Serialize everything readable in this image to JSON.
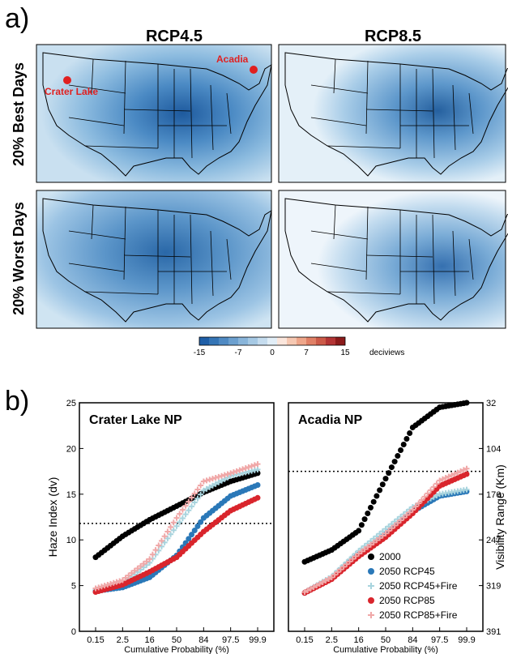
{
  "panel_a": {
    "label": "a)",
    "columns": [
      "RCP4.5",
      "RCP8.5"
    ],
    "rows": [
      "20% Best Days",
      "20% Worst Days"
    ],
    "sites": [
      {
        "name": "Crater Lake"
      },
      {
        "name": "Acadia"
      }
    ],
    "colorbar": {
      "ticks": [
        "-15",
        "-7",
        "0",
        "7",
        "15"
      ],
      "unit": "deciviews",
      "negative_color": "#1f5fa8",
      "positive_color": "#8b1a1a"
    }
  },
  "panel_b": {
    "label": "b)"
  },
  "chart_data": [
    {
      "type": "scatter",
      "title": "Crater Lake NP",
      "xlabel": "Cumulative Probability (%)",
      "ylabel": "Haze Index (dv)",
      "x_ticks": [
        "0.15",
        "2.5",
        "16",
        "50",
        "84",
        "97.5",
        "99.9"
      ],
      "y_ticks": [
        "0",
        "5",
        "10",
        "15",
        "20",
        "25"
      ],
      "ylim": [
        0,
        25
      ],
      "reference_line_y": 11.8,
      "series": [
        {
          "name": "2000",
          "color": "#000000",
          "marker": "circle",
          "x": [
            "0.15",
            "2.5",
            "16",
            "50",
            "84",
            "97.5",
            "99.9"
          ],
          "values": [
            8.1,
            10.4,
            12.2,
            13.7,
            15.2,
            16.4,
            17.3
          ]
        },
        {
          "name": "2050 RCP45",
          "color": "#2a78b8",
          "marker": "circle",
          "x": [
            "0.15",
            "2.5",
            "16",
            "50",
            "84",
            "97.5",
            "99.9"
          ],
          "values": [
            4.4,
            4.8,
            5.9,
            8.3,
            12.4,
            14.8,
            16.0
          ]
        },
        {
          "name": "2050 RCP45+Fire",
          "color": "#a8d4de",
          "marker": "plus",
          "x": [
            "0.15",
            "2.5",
            "16",
            "50",
            "84",
            "97.5",
            "99.9"
          ],
          "values": [
            4.6,
            5.2,
            7.5,
            11.5,
            15.4,
            17.0,
            17.7
          ]
        },
        {
          "name": "2050 RCP85",
          "color": "#d9252c",
          "marker": "circle",
          "x": [
            "0.15",
            "2.5",
            "16",
            "50",
            "84",
            "97.5",
            "99.9"
          ],
          "values": [
            4.3,
            5.1,
            6.5,
            8.1,
            10.9,
            13.2,
            14.6
          ]
        },
        {
          "name": "2050 RCP85+Fire",
          "color": "#f0a8a8",
          "marker": "plus",
          "x": [
            "0.15",
            "2.5",
            "16",
            "50",
            "84",
            "97.5",
            "99.9"
          ],
          "values": [
            4.7,
            5.6,
            7.9,
            12.4,
            16.4,
            17.3,
            18.3
          ]
        }
      ]
    },
    {
      "type": "scatter",
      "title": "Acadia NP",
      "xlabel": "Cumulative Probability (%)",
      "ylabel": "Visibility Range (Km)",
      "x_ticks": [
        "0.15",
        "2.5",
        "16",
        "50",
        "84",
        "97.5",
        "99.9"
      ],
      "y_ticks_right": [
        "32",
        "104",
        "176",
        "247",
        "319",
        "391"
      ],
      "ylim": [
        0,
        25
      ],
      "reference_line_y": 17.5,
      "series": [
        {
          "name": "2000",
          "color": "#000000",
          "marker": "circle",
          "x": [
            "0.15",
            "2.5",
            "16",
            "50",
            "84",
            "97.5",
            "99.9"
          ],
          "values": [
            7.6,
            8.9,
            11.0,
            16.7,
            22.3,
            24.5,
            25.0
          ]
        },
        {
          "name": "2050 RCP45",
          "color": "#2a78b8",
          "marker": "circle",
          "x": [
            "0.15",
            "2.5",
            "16",
            "50",
            "84",
            "97.5",
            "99.9"
          ],
          "values": [
            4.2,
            5.8,
            8.4,
            10.6,
            13.1,
            14.8,
            15.3
          ]
        },
        {
          "name": "2050 RCP45+Fire",
          "color": "#a8d4de",
          "marker": "plus",
          "x": [
            "0.15",
            "2.5",
            "16",
            "50",
            "84",
            "97.5",
            "99.9"
          ],
          "values": [
            4.3,
            6.0,
            8.8,
            11.2,
            13.6,
            15.0,
            15.5
          ]
        },
        {
          "name": "2050 RCP85",
          "color": "#d9252c",
          "marker": "circle",
          "x": [
            "0.15",
            "2.5",
            "16",
            "50",
            "84",
            "97.5",
            "99.9"
          ],
          "values": [
            4.2,
            5.7,
            8.2,
            10.3,
            12.9,
            15.9,
            17.2
          ]
        },
        {
          "name": "2050 RCP85+Fire",
          "color": "#f0a8a8",
          "marker": "plus",
          "x": [
            "0.15",
            "2.5",
            "16",
            "50",
            "84",
            "97.5",
            "99.9"
          ],
          "values": [
            4.3,
            5.9,
            8.5,
            10.7,
            13.3,
            16.5,
            17.8
          ]
        }
      ]
    }
  ]
}
